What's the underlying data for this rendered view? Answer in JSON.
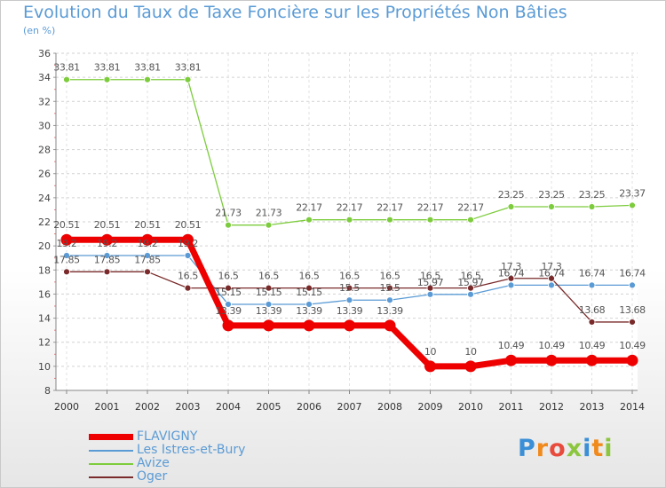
{
  "title": "Evolution du Taux de Taxe Foncière sur les Propriétés Non Bâties",
  "subtitle": "(en %)",
  "logo": "Proxiti",
  "chart_data": {
    "type": "line",
    "title": "Evolution du Taux de Taxe Foncière sur les Propriétés Non Bâties",
    "ylabel": "(en %)",
    "xlabel": "",
    "x": [
      "2000",
      "2001",
      "2002",
      "2003",
      "2004",
      "2005",
      "2006",
      "2007",
      "2008",
      "2009",
      "2010",
      "2011",
      "2012",
      "2013",
      "2014"
    ],
    "ylim": [
      8,
      36
    ],
    "yticks": [
      "8",
      "10",
      "12",
      "14",
      "16",
      "18",
      "20",
      "22",
      "24",
      "26",
      "28",
      "30",
      "32",
      "34",
      "36"
    ],
    "grid": "horizontal dashed",
    "legend_position": "bottom-left",
    "series": [
      {
        "name": "FLAVIGNY",
        "color": "#ee0000",
        "values": [
          20.51,
          20.51,
          20.51,
          20.51,
          13.39,
          13.39,
          13.39,
          13.39,
          13.39,
          10,
          10,
          10.49,
          10.49,
          10.49,
          10.49
        ],
        "labels": [
          "20.51",
          "20.51",
          "20.51",
          "20.51",
          "13.39",
          "13.39",
          "13.39",
          "13.39",
          "13.39",
          "10",
          "10",
          "10.49",
          "10.49",
          "10.49",
          "10.49"
        ]
      },
      {
        "name": "Les Istres-et-Bury",
        "color": "#5b9bd5",
        "values": [
          19.2,
          19.2,
          19.2,
          19.2,
          15.15,
          15.15,
          15.15,
          15.5,
          15.5,
          15.97,
          15.97,
          16.74,
          16.74,
          16.74,
          16.74
        ],
        "labels": [
          "19.2",
          "19.2",
          "19.2",
          "19.2",
          "15.15",
          "15.15",
          "15.15",
          "15.5",
          "15.5",
          "15.97",
          "15.97",
          "16.74",
          "16.74",
          "16.74",
          "16.74"
        ]
      },
      {
        "name": "Avize",
        "color": "#7dcc3d",
        "values": [
          33.81,
          33.81,
          33.81,
          33.81,
          21.73,
          21.73,
          22.17,
          22.17,
          22.17,
          22.17,
          22.17,
          23.25,
          23.25,
          23.25,
          23.37
        ],
        "labels": [
          "33.81",
          "33.81",
          "33.81",
          "33.81",
          "21.73",
          "21.73",
          "22.17",
          "22.17",
          "22.17",
          "22.17",
          "22.17",
          "23.25",
          "23.25",
          "23.25",
          "23.37"
        ]
      },
      {
        "name": "Oger",
        "color": "#7a2a2a",
        "values": [
          17.85,
          17.85,
          17.85,
          16.5,
          16.5,
          16.5,
          16.5,
          16.5,
          16.5,
          16.5,
          16.5,
          17.3,
          17.3,
          13.68,
          13.68
        ],
        "labels": [
          "17.85",
          "17.85",
          "17.85",
          "16.5",
          "16.5",
          "16.5",
          "16.5",
          "16.5",
          "16.5",
          "16.5",
          "16.5",
          "17.3",
          "17.3",
          "13.68",
          "13.68"
        ]
      }
    ]
  }
}
